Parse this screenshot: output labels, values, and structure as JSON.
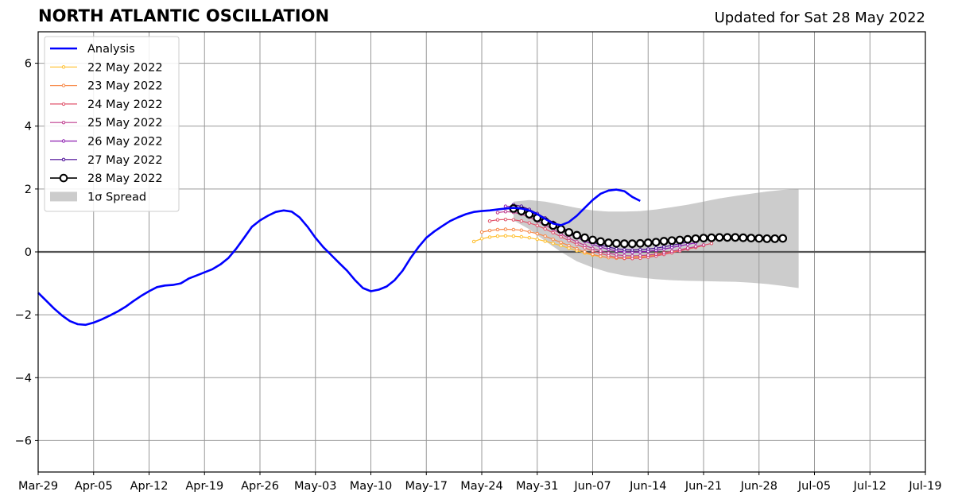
{
  "header": {
    "title": "NORTH ATLANTIC OSCILLATION",
    "updated": "Updated for Sat 28 May 2022"
  },
  "chart_data": {
    "type": "line",
    "title": "NORTH ATLANTIC OSCILLATION",
    "subtitle": "Updated for Sat 28 May 2022",
    "xlabel": "",
    "ylabel": "",
    "xlim": [
      "2022-03-29",
      "2022-07-19"
    ],
    "ylim": [
      -7,
      7
    ],
    "x_ticks": [
      "Mar-29",
      "Apr-05",
      "Apr-12",
      "Apr-19",
      "Apr-26",
      "May-03",
      "May-10",
      "May-17",
      "May-24",
      "May-31",
      "Jun-07",
      "Jun-14",
      "Jun-21",
      "Jun-28",
      "Jul-05",
      "Jul-12",
      "Jul-19"
    ],
    "y_ticks": [
      -6,
      -4,
      -2,
      0,
      2,
      4,
      6
    ],
    "y_tick_labels": [
      "−6",
      "−4",
      "−2",
      "0",
      "2",
      "4",
      "6"
    ],
    "grid": true,
    "legend_position": "top-left",
    "colors": {
      "analysis": "#0000ff",
      "spread": "#cccccc",
      "grid": "#999999",
      "zero_line": "#555555"
    },
    "analysis": {
      "name": "Analysis",
      "color": "#0000ff",
      "start_date": "2022-03-29",
      "values": [
        -1.3,
        -1.55,
        -1.8,
        -2.02,
        -2.2,
        -2.3,
        -2.32,
        -2.25,
        -2.15,
        -2.03,
        -1.9,
        -1.75,
        -1.57,
        -1.4,
        -1.25,
        -1.12,
        -1.07,
        -1.05,
        -1.0,
        -0.85,
        -0.75,
        -0.65,
        -0.55,
        -0.4,
        -0.2,
        0.1,
        0.45,
        0.8,
        1.0,
        1.15,
        1.27,
        1.32,
        1.28,
        1.1,
        0.8,
        0.45,
        0.15,
        -0.1,
        -0.35,
        -0.6,
        -0.9,
        -1.15,
        -1.25,
        -1.2,
        -1.1,
        -0.9,
        -0.6,
        -0.2,
        0.15,
        0.45,
        0.65,
        0.82,
        0.98,
        1.1,
        1.2,
        1.27,
        1.3,
        1.32,
        1.35,
        1.38,
        1.4,
        1.38,
        1.32,
        1.2,
        1.05,
        0.9,
        0.85,
        0.95,
        1.15,
        1.4,
        1.65,
        1.85,
        1.95,
        1.98,
        1.93,
        1.75,
        1.62
      ]
    },
    "spread": {
      "name": "1σ Spread",
      "x": [
        "2022-05-28",
        "2022-05-30",
        "2022-06-01",
        "2022-06-03",
        "2022-06-05",
        "2022-06-07",
        "2022-06-09",
        "2022-06-11",
        "2022-06-13",
        "2022-06-15",
        "2022-06-17",
        "2022-06-19",
        "2022-06-21",
        "2022-06-23",
        "2022-06-25",
        "2022-06-27",
        "2022-06-29",
        "2022-07-01",
        "2022-07-03"
      ],
      "upper": [
        1.6,
        1.65,
        1.6,
        1.5,
        1.4,
        1.32,
        1.28,
        1.28,
        1.3,
        1.35,
        1.42,
        1.5,
        1.6,
        1.7,
        1.78,
        1.85,
        1.92,
        1.97,
        2.0
      ],
      "lower": [
        1.0,
        0.72,
        0.35,
        0.0,
        -0.3,
        -0.5,
        -0.65,
        -0.75,
        -0.82,
        -0.87,
        -0.9,
        -0.92,
        -0.93,
        -0.94,
        -0.95,
        -0.98,
        -1.02,
        -1.08,
        -1.15
      ]
    },
    "series": [
      {
        "name": "22 May 2022",
        "color": "#ffbf2e",
        "start_date": "2022-05-23",
        "values": [
          0.33,
          0.42,
          0.47,
          0.5,
          0.51,
          0.5,
          0.48,
          0.45,
          0.4,
          0.34,
          0.27,
          0.2,
          0.12,
          0.04,
          -0.04,
          -0.1,
          -0.15,
          -0.18,
          -0.19,
          -0.18,
          -0.16,
          -0.14,
          -0.1,
          -0.06,
          -0.02,
          0.02,
          0.07,
          0.12,
          0.16,
          0.22
        ]
      },
      {
        "name": "23 May 2022",
        "color": "#f78a4a",
        "start_date": "2022-05-24",
        "values": [
          0.63,
          0.68,
          0.71,
          0.72,
          0.71,
          0.69,
          0.64,
          0.58,
          0.5,
          0.4,
          0.3,
          0.2,
          0.1,
          0.0,
          -0.08,
          -0.14,
          -0.18,
          -0.2,
          -0.21,
          -0.2,
          -0.18,
          -0.14,
          -0.1,
          -0.06,
          -0.01,
          0.04,
          0.09,
          0.14,
          0.2
        ]
      },
      {
        "name": "24 May 2022",
        "color": "#e0536b",
        "start_date": "2022-05-25",
        "values": [
          0.98,
          1.02,
          1.03,
          1.02,
          0.98,
          0.92,
          0.84,
          0.73,
          0.61,
          0.48,
          0.36,
          0.24,
          0.13,
          0.03,
          -0.05,
          -0.12,
          -0.17,
          -0.2,
          -0.21,
          -0.2,
          -0.17,
          -0.13,
          -0.08,
          -0.03,
          0.03,
          0.09,
          0.15,
          0.21,
          0.27
        ]
      },
      {
        "name": "25 May 2022",
        "color": "#bf3d8f",
        "start_date": "2022-05-26",
        "values": [
          1.25,
          1.28,
          1.26,
          1.2,
          1.1,
          0.98,
          0.85,
          0.71,
          0.57,
          0.44,
          0.32,
          0.21,
          0.11,
          0.03,
          -0.04,
          -0.09,
          -0.12,
          -0.13,
          -0.12,
          -0.1,
          -0.07,
          -0.03,
          0.02,
          0.07,
          0.12,
          0.17,
          0.22
        ]
      },
      {
        "name": "26 May 2022",
        "color": "#8c1cb0",
        "start_date": "2022-05-27",
        "values": [
          1.45,
          1.44,
          1.38,
          1.28,
          1.16,
          1.02,
          0.87,
          0.73,
          0.59,
          0.46,
          0.34,
          0.24,
          0.15,
          0.08,
          0.03,
          0.0,
          -0.01,
          0.0,
          0.02,
          0.05,
          0.09,
          0.14,
          0.19,
          0.24,
          0.29
        ]
      },
      {
        "name": "27 May 2022",
        "color": "#4b0c96",
        "start_date": "2022-05-28",
        "values": [
          1.5,
          1.45,
          1.35,
          1.22,
          1.08,
          0.94,
          0.8,
          0.66,
          0.53,
          0.41,
          0.31,
          0.22,
          0.15,
          0.1,
          0.07,
          0.06,
          0.07,
          0.09,
          0.12,
          0.16,
          0.21,
          0.26,
          0.31
        ]
      },
      {
        "name": "28 May 2022",
        "color": "#000000",
        "start_date": "2022-05-28",
        "values": [
          1.38,
          1.3,
          1.2,
          1.08,
          0.96,
          0.84,
          0.72,
          0.62,
          0.53,
          0.45,
          0.38,
          0.33,
          0.29,
          0.27,
          0.26,
          0.26,
          0.27,
          0.29,
          0.31,
          0.34,
          0.36,
          0.38,
          0.4,
          0.42,
          0.44,
          0.45,
          0.46,
          0.46,
          0.46,
          0.45,
          0.44,
          0.43,
          0.42,
          0.42,
          0.43
        ]
      }
    ],
    "legend": [
      "Analysis",
      "22 May 2022",
      "23 May 2022",
      "24 May 2022",
      "25 May 2022",
      "26 May 2022",
      "27 May 2022",
      "28 May 2022",
      "1σ Spread"
    ]
  }
}
